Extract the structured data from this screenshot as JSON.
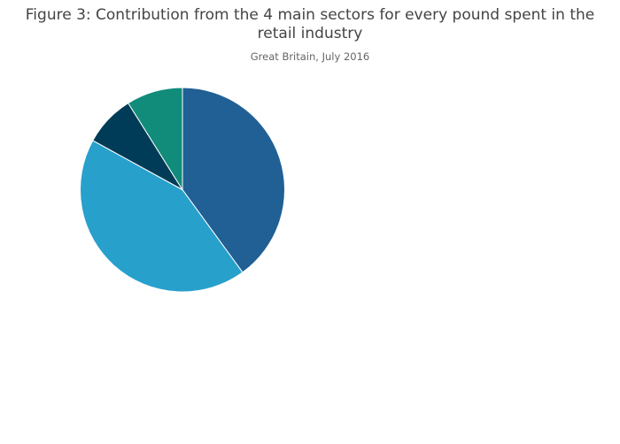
{
  "chart_data": {
    "type": "pie",
    "title_line1": "Figure 3: Contribution from the 4 main sectors for every pound spent in the",
    "title_line2": "retail industry",
    "subtitle": "Great Britain, July 2016",
    "direction": "clockwise",
    "start_angle": "top",
    "legend": "none",
    "slices": [
      {
        "value": 40.0,
        "color": "#206095"
      },
      {
        "value": 43.0,
        "color": "#27a0cc"
      },
      {
        "value": 8.1,
        "color": "#003c57"
      },
      {
        "value": 8.9,
        "color": "#118c7b"
      }
    ]
  }
}
